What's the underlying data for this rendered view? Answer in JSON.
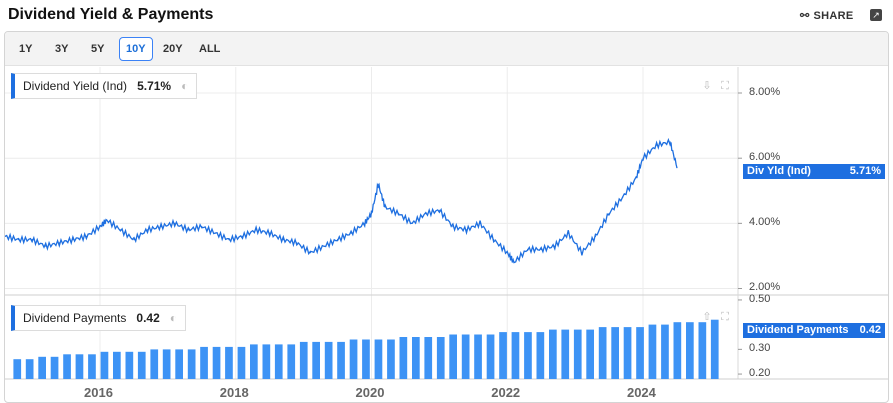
{
  "header": {
    "title": "Dividend Yield & Payments",
    "share_label": "SHARE"
  },
  "ranges": [
    {
      "label": "1Y",
      "active": false
    },
    {
      "label": "3Y",
      "active": false
    },
    {
      "label": "5Y",
      "active": false
    },
    {
      "label": "10Y",
      "active": true
    },
    {
      "label": "20Y",
      "active": false
    },
    {
      "label": "ALL",
      "active": false
    }
  ],
  "icons": {
    "share": "share-icon",
    "expand": "open-external-icon",
    "download": "download-icon",
    "fullscreen": "fullscreen-icon",
    "visibility": "eye-icon"
  },
  "colors": {
    "accent": "#1e6fe0",
    "bar": "#3d93f5"
  },
  "chart_data": [
    {
      "type": "line",
      "legend_label": "Dividend Yield (Ind)",
      "legend_value": "5.71%",
      "price_tag": {
        "label": "Div Yld (Ind)",
        "value": "5.71%"
      },
      "ylim": [
        1.8,
        8.8
      ],
      "y_ticks": [
        {
          "value": 8,
          "label": "8.00%"
        },
        {
          "value": 6,
          "label": "6.00%"
        },
        {
          "value": 4,
          "label": "4.00%"
        },
        {
          "value": 2,
          "label": "2.00%"
        }
      ],
      "x_ticks": [
        {
          "value": 2016,
          "label": "2016"
        },
        {
          "value": 2018,
          "label": "2018"
        },
        {
          "value": 2020,
          "label": "2020"
        },
        {
          "value": 2022,
          "label": "2022"
        },
        {
          "value": 2024,
          "label": "2024"
        }
      ],
      "xlim": [
        2014.6,
        2025.4
      ],
      "x": [
        2014.6,
        2014.8,
        2015.0,
        2015.2,
        2015.4,
        2015.6,
        2015.8,
        2016.0,
        2016.1,
        2016.3,
        2016.5,
        2016.7,
        2016.9,
        2017.1,
        2017.3,
        2017.5,
        2017.7,
        2017.9,
        2018.1,
        2018.3,
        2018.5,
        2018.7,
        2018.9,
        2019.1,
        2019.3,
        2019.5,
        2019.7,
        2019.9,
        2020.0,
        2020.1,
        2020.2,
        2020.4,
        2020.6,
        2020.8,
        2021.0,
        2021.2,
        2021.4,
        2021.6,
        2021.8,
        2022.0,
        2022.1,
        2022.3,
        2022.5,
        2022.7,
        2022.9,
        2023.1,
        2023.3,
        2023.5,
        2023.7,
        2023.9,
        2024.0,
        2024.2,
        2024.4,
        2024.5
      ],
      "y": [
        3.6,
        3.5,
        3.5,
        3.3,
        3.4,
        3.5,
        3.6,
        3.9,
        4.1,
        3.8,
        3.5,
        3.8,
        3.9,
        4.0,
        3.8,
        3.9,
        3.7,
        3.5,
        3.6,
        3.8,
        3.7,
        3.5,
        3.4,
        3.1,
        3.3,
        3.5,
        3.7,
        4.0,
        4.3,
        5.2,
        4.5,
        4.3,
        4.0,
        4.3,
        4.4,
        3.9,
        3.8,
        4.0,
        3.5,
        3.1,
        2.8,
        3.2,
        3.2,
        3.3,
        3.7,
        3.1,
        3.6,
        4.3,
        4.8,
        5.4,
        6.0,
        6.4,
        6.5,
        5.71
      ]
    },
    {
      "type": "bar",
      "legend_label": "Dividend Payments",
      "legend_value": "0.42",
      "price_tag": {
        "label": "Dividend Payments",
        "value": "0.42"
      },
      "ylim": [
        0.18,
        0.52
      ],
      "y_ticks": [
        {
          "value": 0.5,
          "label": "0.50"
        },
        {
          "value": 0.3,
          "label": "0.30"
        },
        {
          "value": 0.2,
          "label": "0.20"
        }
      ],
      "values": [
        0.26,
        0.26,
        0.27,
        0.27,
        0.28,
        0.28,
        0.28,
        0.29,
        0.29,
        0.29,
        0.29,
        0.3,
        0.3,
        0.3,
        0.3,
        0.31,
        0.31,
        0.31,
        0.31,
        0.32,
        0.32,
        0.32,
        0.32,
        0.33,
        0.33,
        0.33,
        0.33,
        0.34,
        0.34,
        0.34,
        0.34,
        0.35,
        0.35,
        0.35,
        0.35,
        0.36,
        0.36,
        0.36,
        0.36,
        0.37,
        0.37,
        0.37,
        0.37,
        0.38,
        0.38,
        0.38,
        0.38,
        0.39,
        0.39,
        0.39,
        0.39,
        0.4,
        0.4,
        0.41,
        0.41,
        0.41,
        0.42
      ]
    }
  ]
}
